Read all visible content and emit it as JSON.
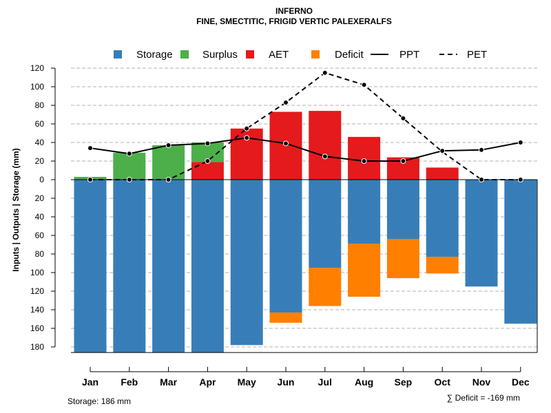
{
  "chart_data": {
    "type": "bar",
    "title": "INFERNO",
    "subtitle": "FINE, SMECTITIC, FRIGID VERTIC PALEXERALFS",
    "ylabel": "Inputs | Outputs | Storage     (mm)",
    "ylim": [
      -190,
      120
    ],
    "yticks": [
      120,
      100,
      80,
      60,
      40,
      20,
      0,
      -20,
      -40,
      -60,
      -80,
      -100,
      -120,
      -140,
      -160,
      -180
    ],
    "ytick_labels": [
      "120",
      "100",
      "80",
      "60",
      "40",
      "20",
      "0",
      "20",
      "40",
      "60",
      "80",
      "100",
      "120",
      "140",
      "160",
      "180"
    ],
    "categories": [
      "Jan",
      "Feb",
      "Mar",
      "Apr",
      "May",
      "Jun",
      "Jul",
      "Aug",
      "Sep",
      "Oct",
      "Nov",
      "Dec"
    ],
    "legend": [
      {
        "name": "Storage",
        "kind": "square",
        "color": "#377EB8"
      },
      {
        "name": "Surplus",
        "kind": "square",
        "color": "#4DAF4A"
      },
      {
        "name": "AET",
        "kind": "square",
        "color": "#E41A1C"
      },
      {
        "name": "Deficit",
        "kind": "square",
        "color": "#FF7F00"
      },
      {
        "name": "PPT",
        "kind": "solid-line",
        "color": "#000000"
      },
      {
        "name": "PET",
        "kind": "dashed-line",
        "color": "#000000"
      }
    ],
    "series": [
      {
        "name": "Storage",
        "color": "#377EB8",
        "values": [
          -186,
          -186,
          -186,
          -186,
          -178,
          -143,
          -95,
          -69,
          -64,
          -83,
          -115,
          -155
        ]
      },
      {
        "name": "Deficit",
        "color": "#FF7F00",
        "values": [
          0,
          0,
          0,
          0,
          0,
          -11,
          -41,
          -57,
          -42,
          -18,
          0,
          0
        ]
      },
      {
        "name": "Surplus",
        "color": "#4DAF4A",
        "values": [
          3,
          29,
          37,
          21,
          0,
          0,
          0,
          0,
          0,
          0,
          0,
          0
        ]
      },
      {
        "name": "AET",
        "color": "#E41A1C",
        "values": [
          0,
          0,
          0,
          19,
          55,
          73,
          74,
          46,
          24,
          13,
          0,
          0
        ]
      },
      {
        "name": "PPT",
        "color": "#000000",
        "values": [
          34,
          28,
          37,
          39,
          45,
          39,
          25,
          20,
          20,
          31,
          32,
          40
        ]
      },
      {
        "name": "PET",
        "color": "#000000",
        "values": [
          0,
          0,
          0,
          20,
          55,
          83,
          115,
          102,
          66,
          30,
          0,
          0
        ]
      }
    ],
    "footer_left": "Storage: 186 mm",
    "footer_right": "∑ Deficit = -169 mm"
  }
}
